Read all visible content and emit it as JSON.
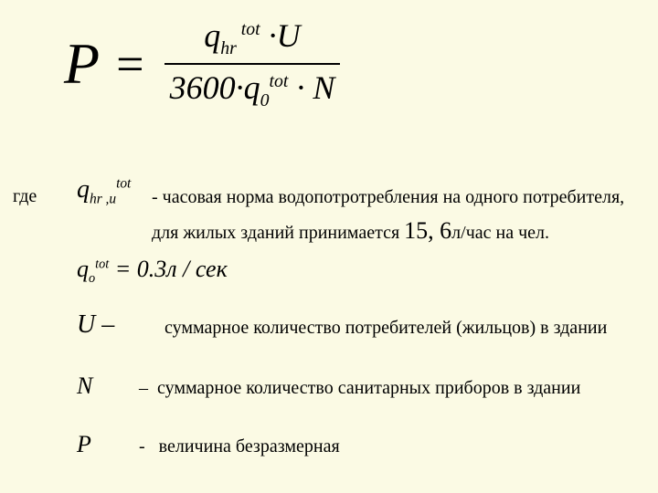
{
  "colors": {
    "background": "#fbfae4",
    "text": "#000000"
  },
  "main_formula": {
    "lhs_symbol": "P",
    "equals": "=",
    "numerator_html": "q<span class='sub'>hr</span><span class='sup'>&nbsp;tot</span>&nbsp;&middot;U",
    "denominator_html": "3600&middot;q<span style='font-style:normal'><span class='sub'>0</span></span><span class='sup'>tot</span>&nbsp;&middot;&nbsp;N",
    "font_size_main": 50,
    "font_size_P": 64
  },
  "where_label": "где",
  "definitions": [
    {
      "symbol_html": "q<span class='sub'>hr&nbsp;,u</span><span class='sup'>tot</span>",
      "text_line1": "- часовая норма водопотротребления на одного потребителя,",
      "text_line2_prefix": "для жилых зданий принимается ",
      "value": "15, 6",
      "text_line2_suffix": "л/час на чел."
    },
    {
      "symbol_html": "q<span class='sub'>o</span><span class='sup'>tot</span>&nbsp;=&nbsp;0.3<span style='font-style:italic'>л / сек</span>",
      "text": ""
    },
    {
      "symbol_html": "U&nbsp;&ndash;",
      "text": "суммарное количество потребителей (жильцов) в здании"
    },
    {
      "symbol_html": "N",
      "dash": "–",
      "text": "суммарное количество санитарных приборов в здании"
    },
    {
      "symbol_html": "P",
      "dash": "-",
      "text": "величина безразмерная"
    }
  ]
}
